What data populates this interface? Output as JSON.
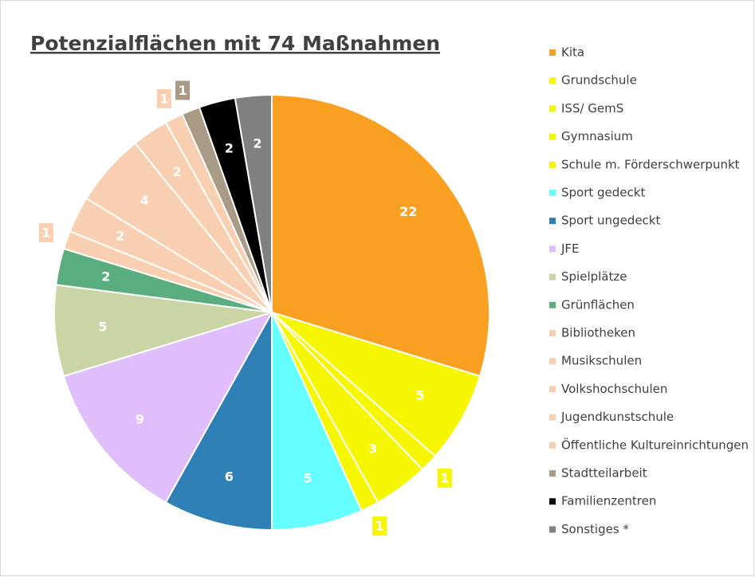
{
  "chart_data": {
    "type": "pie",
    "title": "Potenzialflächen mit 74 Maßnahmen",
    "categories": [
      "Kita",
      "Grundschule",
      "ISS/ GemS",
      "Gymnasium",
      "Schule m. Förderschwerpunkt",
      "Sport gedeckt",
      "Sport ungedeckt",
      "JFE",
      "Spielplätze",
      "Grünflächen",
      "Bibliotheken",
      "Musikschulen",
      "Volkshochschulen",
      "Jugendkunstschule",
      "Öffentliche Kultureinrichtungen",
      "Stadtteilarbeit",
      "Familienzentren",
      "Sonstiges *"
    ],
    "values": [
      22,
      5,
      1,
      3,
      1,
      5,
      6,
      9,
      5,
      2,
      1,
      2,
      4,
      2,
      1,
      1,
      2,
      2
    ],
    "colors": [
      "#f9a023",
      "#f6f600",
      "#f6f600",
      "#f6f600",
      "#f6f600",
      "#66ffff",
      "#2f80b6",
      "#e0bdfb",
      "#c9d5a5",
      "#5aad7f",
      "#f9cfb1",
      "#f9cfb1",
      "#f9cfb1",
      "#f9cfb1",
      "#f9cfb1",
      "#a99b86",
      "#000000",
      "#808080"
    ]
  }
}
